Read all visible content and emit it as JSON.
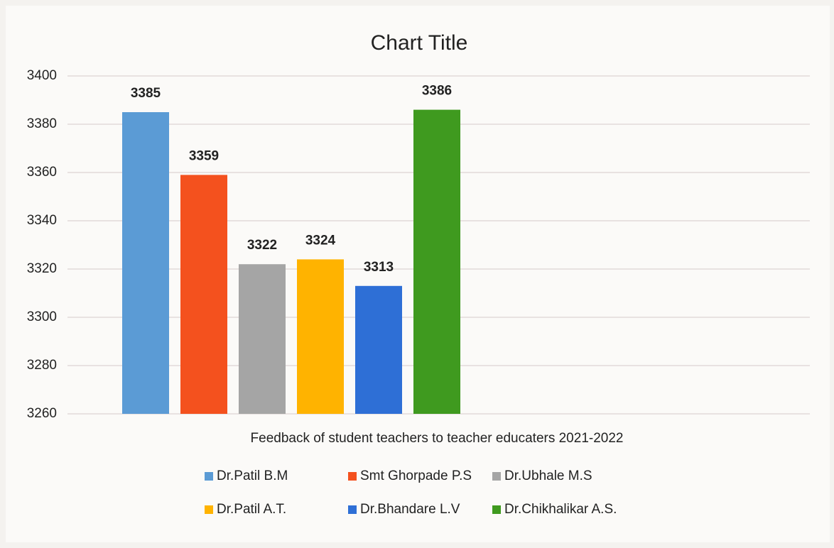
{
  "chart_data": {
    "type": "bar",
    "title": "Chart Title",
    "categories": [
      "Feedback of student teachers to teacher educaters 2021-2022"
    ],
    "series": [
      {
        "name": "Dr.Patil B.M",
        "color": "#5b9bd5",
        "values": [
          3385
        ]
      },
      {
        "name": "Smt Ghorpade P.S",
        "color": "#f4511e",
        "values": [
          3359
        ]
      },
      {
        "name": "Dr.Ubhale M.S",
        "color": "#a5a5a5",
        "values": [
          3322
        ]
      },
      {
        "name": "Dr.Patil A.T.",
        "color": "#ffb300",
        "values": [
          3324
        ]
      },
      {
        "name": "Dr.Bhandare L.V",
        "color": "#2e6fd6",
        "values": [
          3313
        ]
      },
      {
        "name": "Dr.Chikhalikar A.S.",
        "color": "#3f9a1f",
        "values": [
          3386
        ]
      }
    ],
    "ylim": [
      3260,
      3400
    ],
    "yticks": [
      3260,
      3280,
      3300,
      3320,
      3340,
      3360,
      3380,
      3400
    ],
    "grid": true,
    "legend": "bottom"
  }
}
